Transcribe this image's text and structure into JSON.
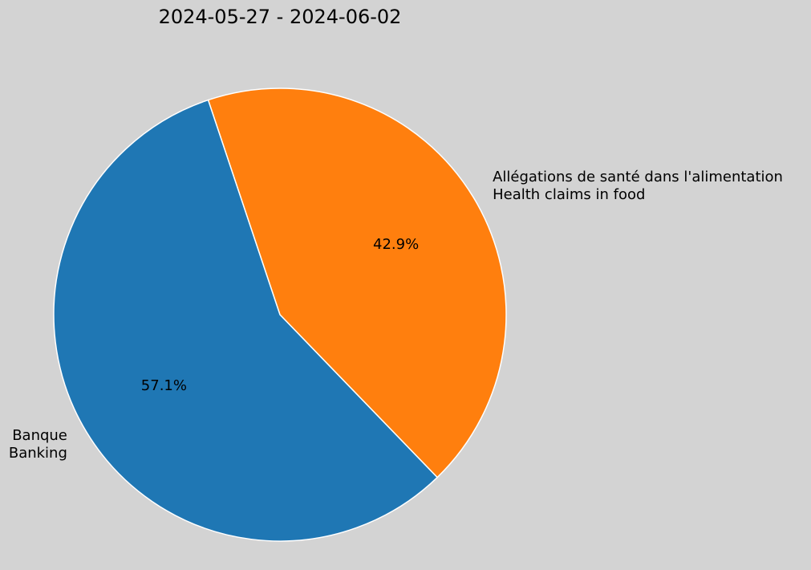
{
  "chart_data": {
    "type": "pie",
    "title": "2024-05-27 - 2024-06-02",
    "slices": [
      {
        "label_lines": [
          "Allégations de santé dans l'alimentation",
          "Health claims in food"
        ],
        "value": 42.9,
        "pct_label": "42.9%",
        "color": "#ff7f0e"
      },
      {
        "label_lines": [
          "Banque",
          "Banking"
        ],
        "value": 57.1,
        "pct_label": "57.1%",
        "color": "#1f77b4"
      }
    ],
    "edge_color": "#ffffff",
    "background": "#d3d3d3"
  }
}
